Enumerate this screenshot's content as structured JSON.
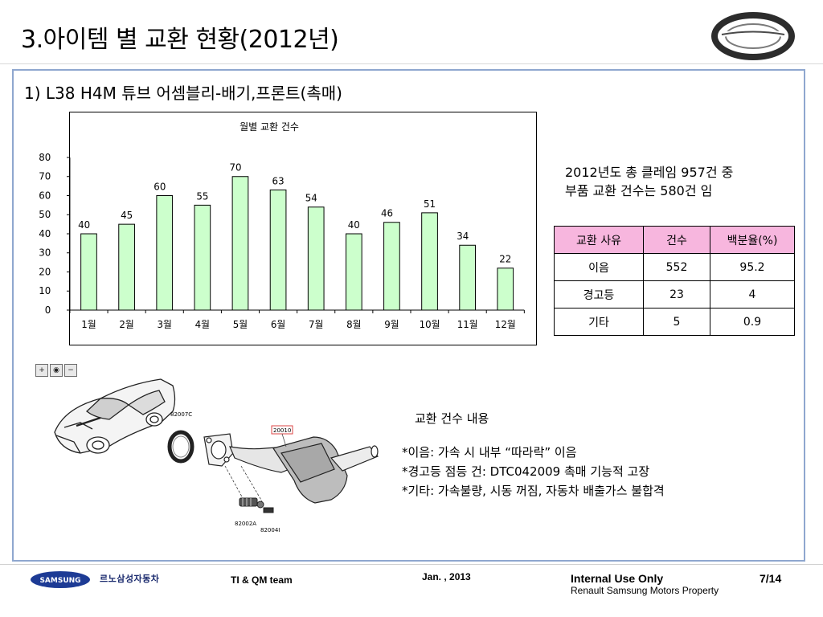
{
  "header": {
    "title": "3.아이템 별 교환 현황(2012년)"
  },
  "section": {
    "subtitle": "1) L38 H4M 튜브 어셈블리-배기,프론트(촉매)"
  },
  "chart_data": {
    "type": "bar",
    "title": "월별 교환 건수",
    "categories": [
      "1월",
      "2월",
      "3월",
      "4월",
      "5월",
      "6월",
      "7월",
      "8월",
      "9월",
      "10월",
      "11월",
      "12월"
    ],
    "values": [
      40,
      45,
      60,
      55,
      70,
      63,
      54,
      40,
      46,
      51,
      34,
      22
    ],
    "ylim": [
      0,
      80
    ],
    "yticks": [
      0,
      10,
      20,
      30,
      40,
      50,
      60,
      70,
      80
    ],
    "bar_color": "#ccffcc",
    "grid": false,
    "legend": "none"
  },
  "summary": {
    "line1": "2012년도 총 클레임 957건 중",
    "line2": "부품 교환 건수는 580건 임"
  },
  "table": {
    "headers": [
      "교환 사유",
      "건수",
      "백분율(%)"
    ],
    "rows": [
      [
        "이음",
        "552",
        "95.2"
      ],
      [
        "경고등",
        "23",
        "4"
      ],
      [
        "기타",
        "5",
        "0.9"
      ]
    ],
    "header_color": "#f7b6de"
  },
  "diagram": {
    "labels": {
      "gasket_top": "82007C",
      "tube": "20010",
      "spring": "82002A",
      "bolt": "82004I"
    }
  },
  "details": {
    "title": "교환 건수 내용",
    "items": [
      "*이음: 가속 시 내부 “따라락” 이음",
      "*경고등 점등 건: DTC042009 촉매 기능적 고장",
      "*기타: 가속불량, 시동 꺼짐, 자동차 배출가스  불합격"
    ]
  },
  "footer": {
    "samsung": "SAMSUNG",
    "brand_kr": "르노삼성자동차",
    "team": "TI & QM team",
    "date": "Jan. , 2013",
    "internal": "Internal Use Only",
    "property": "Renault Samsung Motors Property",
    "page": "7/14"
  }
}
